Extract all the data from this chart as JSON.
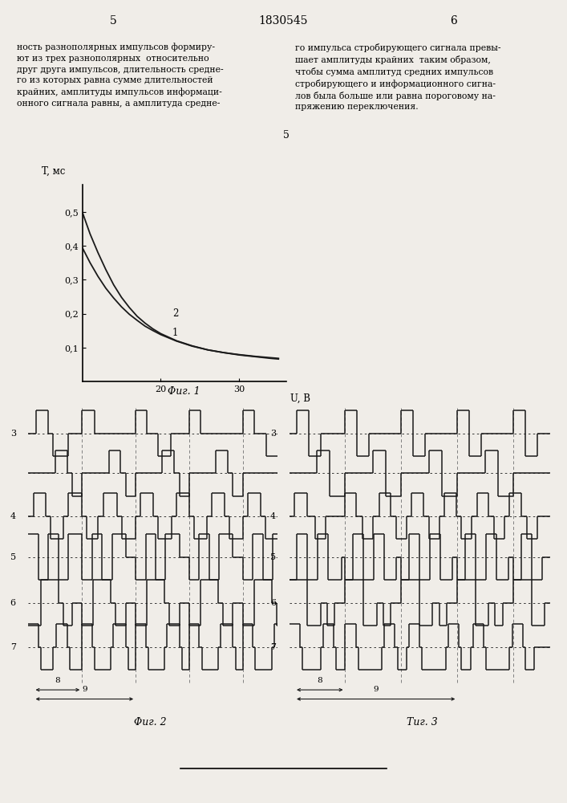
{
  "page_number_left": "5",
  "page_number_center": "1830545",
  "page_number_right": "6",
  "text_left": "ность разнополярных импульсов формиру-\nют из трех разнополярных  относительно\nдруг друга импульсов, длительность средне-\nго из которых равна сумме длительностей\nкрайних, амплитуды импульсов информаци-\nонного сигнала равны, а амплитуда средне-",
  "text_right": "го импульса стробирующего сигнала превы-\nшает амплитуды крайних  таким образом,\nчтобы сумма амплитуд средних импульсов\nстробирующего и информационного сигна-\nлов была больше или равна пороговому на-\nпряжению переключения.",
  "text_center_number": "5",
  "graph_ylabel": "T, мс",
  "graph_xlabel": "U, В",
  "graph_xlim": [
    10,
    36
  ],
  "graph_ylim": [
    0,
    0.58
  ],
  "graph_yticks": [
    0.1,
    0.2,
    0.3,
    0.4,
    0.5
  ],
  "graph_ytick_labels": [
    "0,1",
    "0,2",
    "0,3",
    "0,4",
    "0,5"
  ],
  "graph_xticks": [
    20,
    30
  ],
  "graph_xtick_labels": [
    "20",
    "30"
  ],
  "curve1_x": [
    10,
    11,
    12,
    13,
    14,
    15,
    16,
    17,
    18,
    19,
    20,
    22,
    24,
    26,
    28,
    30,
    32,
    34,
    35
  ],
  "curve1_y": [
    0.5,
    0.435,
    0.38,
    0.33,
    0.285,
    0.248,
    0.218,
    0.192,
    0.172,
    0.155,
    0.141,
    0.12,
    0.105,
    0.093,
    0.085,
    0.078,
    0.073,
    0.068,
    0.066
  ],
  "curve2_x": [
    10,
    11,
    12,
    13,
    14,
    15,
    16,
    17,
    18,
    19,
    20,
    22,
    24,
    26,
    28,
    30,
    32,
    34,
    35
  ],
  "curve2_y": [
    0.395,
    0.35,
    0.31,
    0.275,
    0.246,
    0.22,
    0.198,
    0.18,
    0.163,
    0.15,
    0.138,
    0.119,
    0.104,
    0.093,
    0.085,
    0.079,
    0.074,
    0.07,
    0.068
  ],
  "curve1_label": "1",
  "curve2_label": "2",
  "fig1_caption": "Φиг. 1",
  "fig2_caption": "Φиг. 2",
  "fig3_caption": "Τиг. 3",
  "background_color": "#f0ede8",
  "line_color": "#1a1a1a"
}
